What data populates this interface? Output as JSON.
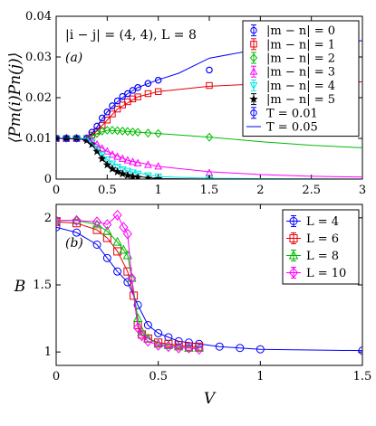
{
  "chart_data": [
    {
      "type": "line",
      "panel_label": "(a)",
      "annotation": "|i − j| = (4, 4), L = 8",
      "ylabel": "⟨Pm(i)Pn(j)⟩",
      "xlabel": "",
      "xlim": [
        0,
        3
      ],
      "ylim": [
        0,
        0.04
      ],
      "xticks": [
        "0",
        "0.5",
        "1",
        "1.5",
        "2",
        "2.5",
        "3"
      ],
      "yticks": [
        "0",
        "0.01",
        "0.02",
        "0.03",
        "0.04"
      ],
      "legend_position": "top-right",
      "series": [
        {
          "name": "|m − n| = 0",
          "color": "#0000ff",
          "marker": "circle",
          "x": [
            0,
            0.1,
            0.2,
            0.3,
            0.35,
            0.4,
            0.45,
            0.5,
            0.55,
            0.6,
            0.65,
            0.7,
            0.75,
            0.8,
            0.9,
            1.0,
            1.5
          ],
          "y": [
            0.01,
            0.01,
            0.01,
            0.01,
            0.0115,
            0.013,
            0.015,
            0.0165,
            0.018,
            0.0192,
            0.0203,
            0.021,
            0.0218,
            0.0225,
            0.0235,
            0.0243,
            0.0268
          ]
        },
        {
          "name": "|m − n| = 1",
          "color": "#e8000b",
          "marker": "square",
          "x": [
            0,
            0.1,
            0.2,
            0.3,
            0.35,
            0.4,
            0.45,
            0.5,
            0.55,
            0.6,
            0.65,
            0.7,
            0.75,
            0.8,
            0.9,
            1.0,
            1.5
          ],
          "y": [
            0.01,
            0.01,
            0.01,
            0.01,
            0.0108,
            0.0118,
            0.0132,
            0.0145,
            0.016,
            0.0172,
            0.0182,
            0.019,
            0.0197,
            0.0202,
            0.021,
            0.0215,
            0.023
          ]
        },
        {
          "name": "|m − n| = 2",
          "color": "#00bb00",
          "marker": "diamond",
          "x": [
            0,
            0.1,
            0.2,
            0.3,
            0.35,
            0.4,
            0.45,
            0.5,
            0.55,
            0.6,
            0.65,
            0.7,
            0.75,
            0.8,
            0.9,
            1.0,
            1.5
          ],
          "y": [
            0.01,
            0.01,
            0.01,
            0.01,
            0.0105,
            0.0112,
            0.0118,
            0.012,
            0.012,
            0.0119,
            0.0118,
            0.0117,
            0.0116,
            0.0115,
            0.0113,
            0.0112,
            0.0103
          ]
        },
        {
          "name": "|m − n| = 3",
          "color": "#ff00ff",
          "marker": "triangle-up",
          "x": [
            0,
            0.1,
            0.2,
            0.3,
            0.35,
            0.4,
            0.45,
            0.5,
            0.55,
            0.6,
            0.65,
            0.7,
            0.75,
            0.8,
            0.9,
            1.0,
            1.5
          ],
          "y": [
            0.01,
            0.01,
            0.01,
            0.01,
            0.0095,
            0.0085,
            0.0075,
            0.0068,
            0.006,
            0.0055,
            0.005,
            0.0046,
            0.0042,
            0.0039,
            0.0035,
            0.0031,
            0.0015
          ]
        },
        {
          "name": "|m − n| = 4",
          "color": "#00e5e5",
          "marker": "triangle-down",
          "x": [
            0,
            0.1,
            0.2,
            0.3,
            0.35,
            0.4,
            0.45,
            0.5,
            0.55,
            0.6,
            0.65,
            0.7,
            0.75,
            0.8,
            0.9,
            1.0,
            1.5
          ],
          "y": [
            0.01,
            0.01,
            0.01,
            0.01,
            0.009,
            0.0075,
            0.006,
            0.0048,
            0.0038,
            0.003,
            0.0024,
            0.002,
            0.0016,
            0.0013,
            0.0009,
            0.0006,
            0.0001
          ]
        },
        {
          "name": "|m − n| = 5",
          "color": "#000000",
          "marker": "star",
          "x": [
            0,
            0.1,
            0.2,
            0.3,
            0.35,
            0.4,
            0.45,
            0.5,
            0.55,
            0.6,
            0.65,
            0.7,
            0.75,
            0.8,
            0.9,
            1.0,
            1.5
          ],
          "y": [
            0.01,
            0.01,
            0.01,
            0.0095,
            0.0085,
            0.0068,
            0.005,
            0.0035,
            0.0025,
            0.0018,
            0.0013,
            0.0009,
            0.0006,
            0.0004,
            0.0002,
            0.0001,
            0
          ]
        },
        {
          "name": "T = 0.01",
          "color": "#0000ff",
          "marker": "open-circle",
          "line": false,
          "x": [
            0,
            0.1,
            0.2,
            0.3,
            0.35,
            0.4,
            0.45,
            0.5,
            0.55,
            0.6,
            0.65,
            0.7,
            0.75,
            0.8,
            0.9,
            1.0,
            1.5
          ],
          "y": [
            0.01,
            0.01,
            0.01,
            0.01,
            0.0115,
            0.013,
            0.015,
            0.0165,
            0.018,
            0.0192,
            0.0203,
            0.021,
            0.0218,
            0.0225,
            0.0235,
            0.0243,
            0.0268
          ]
        },
        {
          "name": "T = 0.05",
          "color": "#0000ff",
          "marker": "none",
          "x": [
            0,
            0.2,
            0.3,
            0.35,
            0.4,
            0.45,
            0.5,
            0.6,
            0.7,
            0.8,
            1.0,
            1.2,
            1.5,
            2.0,
            2.5,
            3.0
          ],
          "y": [
            0.01,
            0.01,
            0.01,
            0.0112,
            0.0128,
            0.0148,
            0.0165,
            0.019,
            0.021,
            0.0225,
            0.0244,
            0.026,
            0.0297,
            0.032,
            0.0333,
            0.034
          ]
        },
        {
          "name": "",
          "color": "#e8000b",
          "marker": "none",
          "x": [
            0,
            0.3,
            0.4,
            0.5,
            0.6,
            0.8,
            1.0,
            1.5,
            2.0,
            2.5,
            3.0
          ],
          "y": [
            0.01,
            0.01,
            0.0118,
            0.0145,
            0.0172,
            0.0202,
            0.0215,
            0.0228,
            0.0234,
            0.0237,
            0.0239
          ]
        },
        {
          "name": "",
          "color": "#00bb00",
          "marker": "none",
          "x": [
            0,
            0.3,
            0.4,
            0.5,
            0.7,
            1.0,
            1.5,
            2.0,
            2.5,
            3.0
          ],
          "y": [
            0.01,
            0.01,
            0.0112,
            0.012,
            0.0117,
            0.0112,
            0.0103,
            0.0092,
            0.0083,
            0.0077
          ]
        },
        {
          "name": "",
          "color": "#ff00ff",
          "marker": "none",
          "x": [
            0,
            0.3,
            0.4,
            0.5,
            0.7,
            1.0,
            1.5,
            2.0,
            2.5,
            3.0
          ],
          "y": [
            0.01,
            0.01,
            0.0085,
            0.0068,
            0.0046,
            0.0031,
            0.0018,
            0.0011,
            0.0007,
            0.0005
          ]
        },
        {
          "name": "",
          "color": "#00e5e5",
          "marker": "none",
          "x": [
            0,
            0.3,
            0.4,
            0.5,
            0.7,
            1.0,
            1.5,
            2.0,
            3.0
          ],
          "y": [
            0.01,
            0.01,
            0.0075,
            0.0048,
            0.002,
            0.0006,
            0.0002,
            0.0001,
            0
          ]
        },
        {
          "name": "",
          "color": "#000000",
          "marker": "none",
          "x": [
            0,
            0.25,
            0.35,
            0.45,
            0.55,
            0.7,
            1.0,
            1.5,
            3.0
          ],
          "y": [
            0.01,
            0.0098,
            0.0085,
            0.005,
            0.0025,
            0.0009,
            0.0001,
            0,
            0
          ]
        }
      ]
    },
    {
      "type": "line",
      "panel_label": "(b)",
      "xlabel": "V",
      "ylabel": "B",
      "xlim": [
        0,
        1.5
      ],
      "ylim": [
        0.9,
        2.1
      ],
      "xticks": [
        "0",
        "0.5",
        "1",
        "1.5"
      ],
      "yticks": [
        "1",
        "1.5",
        "2"
      ],
      "legend_position": "top-right",
      "series": [
        {
          "name": "L = 4",
          "color": "#0000ff",
          "marker": "open-circle",
          "x": [
            0,
            0.1,
            0.2,
            0.25,
            0.3,
            0.35,
            0.4,
            0.45,
            0.5,
            0.55,
            0.6,
            0.65,
            0.7,
            0.8,
            0.9,
            1.0,
            1.5
          ],
          "y": [
            1.93,
            1.89,
            1.8,
            1.7,
            1.6,
            1.52,
            1.35,
            1.2,
            1.14,
            1.11,
            1.08,
            1.07,
            1.06,
            1.04,
            1.03,
            1.02,
            1.01
          ]
        },
        {
          "name": "L = 6",
          "color": "#e8000b",
          "marker": "open-square",
          "x": [
            0,
            0.1,
            0.2,
            0.25,
            0.3,
            0.35,
            0.38,
            0.4,
            0.42,
            0.45,
            0.5,
            0.55,
            0.6,
            0.65,
            0.7
          ],
          "y": [
            1.97,
            1.96,
            1.91,
            1.85,
            1.75,
            1.6,
            1.42,
            1.2,
            1.13,
            1.1,
            1.07,
            1.06,
            1.05,
            1.04,
            1.04
          ]
        },
        {
          "name": "L = 8",
          "color": "#00bb00",
          "marker": "open-triangle",
          "x": [
            0,
            0.1,
            0.2,
            0.25,
            0.3,
            0.33,
            0.35,
            0.37,
            0.4,
            0.42,
            0.45,
            0.5,
            0.55,
            0.6,
            0.65,
            0.7
          ],
          "y": [
            1.98,
            1.98,
            1.95,
            1.9,
            1.82,
            1.76,
            1.72,
            1.55,
            1.25,
            1.15,
            1.1,
            1.06,
            1.05,
            1.04,
            1.03,
            1.03
          ]
        },
        {
          "name": "L = 10",
          "color": "#ff00ff",
          "marker": "open-diamond",
          "x": [
            0,
            0.1,
            0.2,
            0.25,
            0.3,
            0.33,
            0.35,
            0.37,
            0.4,
            0.42,
            0.45,
            0.5,
            0.55,
            0.6,
            0.65,
            0.7
          ],
          "y": [
            1.98,
            1.98,
            1.97,
            1.95,
            2.02,
            1.93,
            1.88,
            1.55,
            1.18,
            1.12,
            1.08,
            1.05,
            1.04,
            1.03,
            1.03,
            1.02
          ]
        }
      ]
    }
  ]
}
